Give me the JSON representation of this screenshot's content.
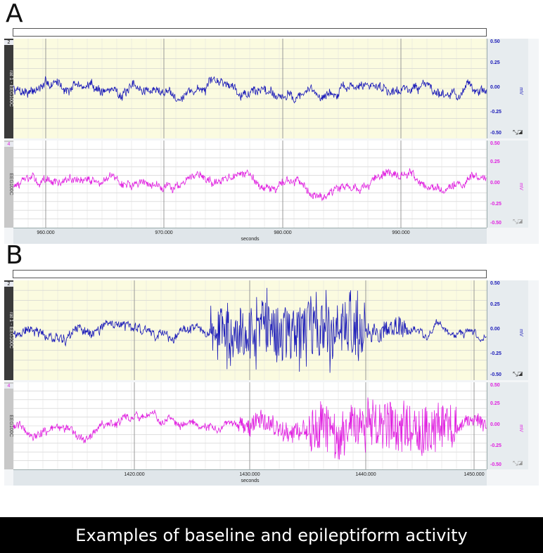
{
  "panels": [
    {
      "letter": "A",
      "channels": [
        {
          "number": "2",
          "label": "rat 1 - EEG100C",
          "color": "#1a1ab8",
          "ticks": [
            "0.50",
            "0.25",
            "0.00",
            "-0.25",
            "-0.50"
          ],
          "unit": "mV",
          "bg": "#fbfbe0",
          "label_style": "dark"
        },
        {
          "number": "4",
          "label": "EEG100C",
          "color": "#e020e0",
          "ticks": [
            "0.50",
            "0.25",
            "0.00",
            "-0.25",
            "-0.50"
          ],
          "unit": "mV",
          "bg": "#ffffff",
          "label_style": "gray"
        }
      ],
      "x_ticks": [
        "960.000",
        "970.000",
        "980.000",
        "990.000"
      ],
      "x_label": "seconds"
    },
    {
      "letter": "B",
      "channels": [
        {
          "number": "2",
          "label": "rat 1 - EEG100C",
          "color": "#1a1ab8",
          "ticks": [
            "0.50",
            "0.25",
            "0.00",
            "-0.25",
            "-0.50"
          ],
          "unit": "mV",
          "bg": "#fbfbe0",
          "label_style": "dark"
        },
        {
          "number": "4",
          "label": "EEG100C",
          "color": "#e020e0",
          "ticks": [
            "0.50",
            "0.25",
            "0.00",
            "-0.25",
            "-0.50"
          ],
          "unit": "mV",
          "bg": "#ffffff",
          "label_style": "gray"
        }
      ],
      "x_ticks": [
        "1420.000",
        "1430.000",
        "1440.000",
        "1450.000"
      ],
      "x_label": "seconds"
    }
  ],
  "caption": "Examples of baseline and epileptiform activity"
}
